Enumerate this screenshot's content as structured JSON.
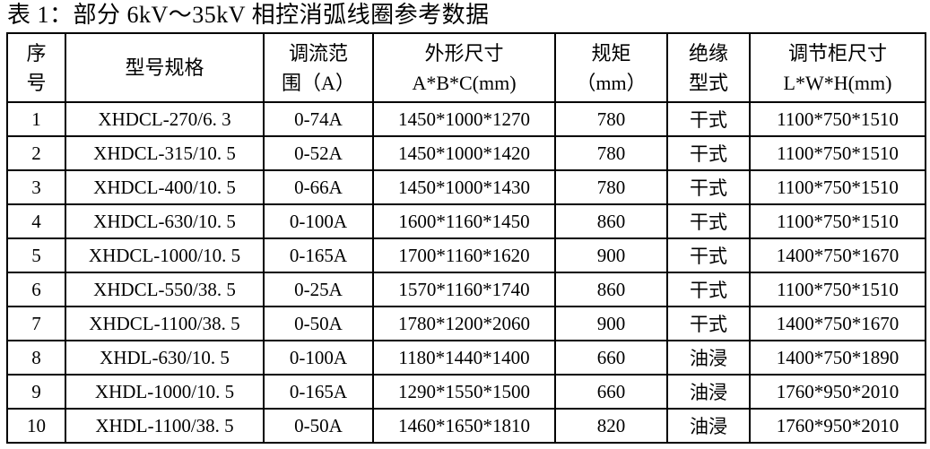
{
  "title": "表 1：部分 6kV～35kV 相控消弧线圈参考数据",
  "table": {
    "headers": [
      {
        "name": "serial-number",
        "lines": [
          "序",
          "号"
        ]
      },
      {
        "name": "model-spec",
        "lines": [
          "型号规格"
        ]
      },
      {
        "name": "current-range",
        "lines": [
          "调流范",
          "围（A）"
        ]
      },
      {
        "name": "overall-dimensions",
        "lines": [
          "外形尺寸",
          "A*B*C(mm)"
        ]
      },
      {
        "name": "gauge-mm",
        "lines": [
          "规矩",
          "（mm）"
        ]
      },
      {
        "name": "insulation-type",
        "lines": [
          "绝缘",
          "型式"
        ]
      },
      {
        "name": "cabinet-dimensions",
        "lines": [
          "调节柜尺寸",
          "L*W*H(mm)"
        ]
      }
    ],
    "rows": [
      [
        "1",
        "XHDCL-270/6. 3",
        "0-74A",
        "1450*1000*1270",
        "780",
        "干式",
        "1100*750*1510"
      ],
      [
        "2",
        "XHDCL-315/10. 5",
        "0-52A",
        "1450*1000*1420",
        "780",
        "干式",
        "1100*750*1510"
      ],
      [
        "3",
        "XHDCL-400/10. 5",
        "0-66A",
        "1450*1000*1430",
        "780",
        "干式",
        "1100*750*1510"
      ],
      [
        "4",
        "XHDCL-630/10. 5",
        "0-100A",
        "1600*1160*1450",
        "860",
        "干式",
        "1100*750*1510"
      ],
      [
        "5",
        "XHDCL-1000/10. 5",
        "0-165A",
        "1700*1160*1620",
        "900",
        "干式",
        "1400*750*1670"
      ],
      [
        "6",
        "XHDCL-550/38. 5",
        "0-25A",
        "1570*1160*1740",
        "860",
        "干式",
        "1100*750*1510"
      ],
      [
        "7",
        "XHDCL-1100/38. 5",
        "0-50A",
        "1780*1200*2060",
        "900",
        "干式",
        "1400*750*1670"
      ],
      [
        "8",
        "XHDL-630/10. 5",
        "0-100A",
        "1180*1440*1400",
        "660",
        "油浸",
        "1400*750*1890"
      ],
      [
        "9",
        "XHDL-1000/10. 5",
        "0-165A",
        "1290*1550*1500",
        "660",
        "油浸",
        "1760*950*2010"
      ],
      [
        "10",
        "XHDL-1100/38. 5",
        "0-50A",
        "1460*1650*1810",
        "820",
        "油浸",
        "1760*950*2010"
      ]
    ],
    "colors": {
      "text": "#000000",
      "border": "#000000",
      "background": "#ffffff"
    }
  }
}
